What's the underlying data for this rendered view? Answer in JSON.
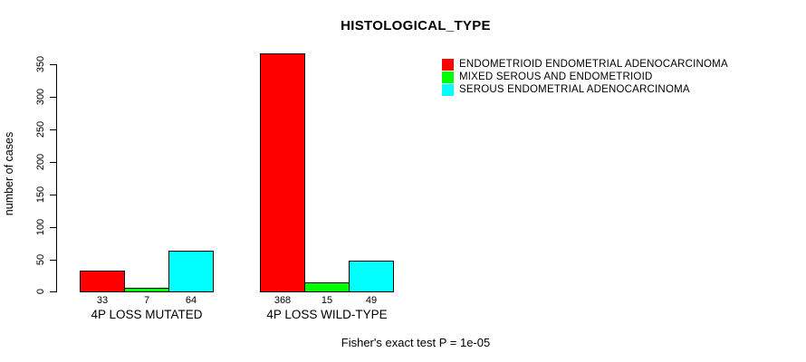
{
  "chart_data": {
    "type": "bar",
    "title": "HISTOLOGICAL_TYPE",
    "ylabel": "number of cases",
    "xlabel": "",
    "ylim": [
      0,
      350
    ],
    "yticks": [
      0,
      50,
      100,
      150,
      200,
      250,
      300,
      350
    ],
    "grid": false,
    "legend_position": "top-right",
    "categories": [
      "4P LOSS MUTATED",
      "4P LOSS WILD-TYPE"
    ],
    "series": [
      {
        "name": "ENDOMETRIOID ENDOMETRIAL ADENOCARCINOMA",
        "color": "#FF0000",
        "values": [
          33,
          368
        ]
      },
      {
        "name": "MIXED SEROUS AND ENDOMETRIOID",
        "color": "#00FF00",
        "values": [
          7,
          15
        ]
      },
      {
        "name": "SEROUS ENDOMETRIAL ADENOCARCINOMA",
        "color": "#00FFFF",
        "values": [
          64,
          49
        ]
      }
    ],
    "bar_value_labels_shown": true,
    "footnote": "Fisher's exact test P = 1e-05"
  }
}
